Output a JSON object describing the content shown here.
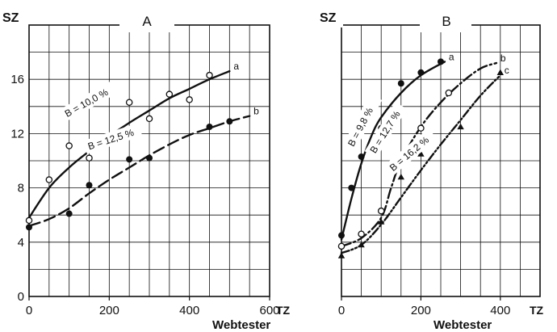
{
  "chart_data": [
    {
      "type": "scatter",
      "panel_label": "A",
      "ylabel": "SZ",
      "xlabel": "Webtester",
      "x_unit": "TZ",
      "xlim": [
        0,
        600
      ],
      "ylim": [
        0,
        20
      ],
      "x_ticks": [
        "0",
        "200",
        "400",
        "600"
      ],
      "y_ticks": [
        "0",
        "4",
        "8",
        "12",
        "16"
      ],
      "grid": true,
      "series": [
        {
          "name": "a",
          "annotation": "B = 10,0 %",
          "marker": "open-circle",
          "line": "solid",
          "points": [
            [
              0,
              5.6
            ],
            [
              50,
              8.6
            ],
            [
              100,
              11.1
            ],
            [
              150,
              10.2
            ],
            [
              250,
              14.3
            ],
            [
              300,
              13.1
            ],
            [
              350,
              14.9
            ],
            [
              400,
              14.5
            ],
            [
              450,
              16.3
            ]
          ],
          "curve": [
            [
              0,
              5.8
            ],
            [
              50,
              8.0
            ],
            [
              100,
              9.5
            ],
            [
              150,
              10.7
            ],
            [
              200,
              11.8
            ],
            [
              250,
              12.8
            ],
            [
              300,
              13.7
            ],
            [
              350,
              14.6
            ],
            [
              400,
              15.3
            ],
            [
              450,
              16.0
            ],
            [
              500,
              16.6
            ]
          ]
        },
        {
          "name": "b",
          "annotation": "B = 12,5 %",
          "marker": "filled-circle",
          "line": "dashed",
          "points": [
            [
              0,
              5.1
            ],
            [
              100,
              6.1
            ],
            [
              150,
              8.2
            ],
            [
              250,
              10.1
            ],
            [
              300,
              10.2
            ],
            [
              450,
              12.5
            ],
            [
              500,
              12.9
            ]
          ],
          "curve": [
            [
              0,
              5.2
            ],
            [
              50,
              5.7
            ],
            [
              100,
              6.5
            ],
            [
              150,
              7.6
            ],
            [
              200,
              8.6
            ],
            [
              250,
              9.5
            ],
            [
              300,
              10.4
            ],
            [
              350,
              11.2
            ],
            [
              400,
              11.9
            ],
            [
              450,
              12.4
            ],
            [
              500,
              12.9
            ],
            [
              550,
              13.3
            ]
          ]
        }
      ]
    },
    {
      "type": "scatter",
      "panel_label": "B",
      "ylabel": "SZ",
      "xlabel": "Webtester",
      "x_unit": "TZ",
      "xlim": [
        0,
        500
      ],
      "ylim": [
        0,
        20
      ],
      "x_ticks": [
        "0",
        "200",
        "400"
      ],
      "y_ticks": [],
      "grid": true,
      "series": [
        {
          "name": "a",
          "annotation": "B = 9,8 %",
          "marker": "filled-circle",
          "line": "solid",
          "points": [
            [
              0,
              4.5
            ],
            [
              25,
              8.0
            ],
            [
              50,
              10.3
            ],
            [
              100,
              12.4
            ],
            [
              150,
              15.7
            ],
            [
              200,
              16.5
            ],
            [
              250,
              17.3
            ]
          ],
          "curve": [
            [
              0,
              4.2
            ],
            [
              25,
              7.2
            ],
            [
              50,
              9.8
            ],
            [
              75,
              11.8
            ],
            [
              100,
              13.2
            ],
            [
              150,
              15.0
            ],
            [
              200,
              16.3
            ],
            [
              260,
              17.3
            ]
          ]
        },
        {
          "name": "b",
          "annotation": "B = 12,7 %",
          "marker": "open-circle",
          "line": "dash-dot",
          "points": [
            [
              0,
              3.7
            ],
            [
              50,
              4.6
            ],
            [
              100,
              6.3
            ],
            [
              150,
              10.3
            ],
            [
              200,
              12.4
            ],
            [
              270,
              15.0
            ]
          ],
          "curve": [
            [
              0,
              3.7
            ],
            [
              50,
              4.3
            ],
            [
              100,
              5.8
            ],
            [
              125,
              8.0
            ],
            [
              150,
              10.0
            ],
            [
              200,
              12.5
            ],
            [
              250,
              14.3
            ],
            [
              300,
              15.7
            ],
            [
              350,
              16.8
            ],
            [
              390,
              17.2
            ]
          ]
        },
        {
          "name": "c",
          "annotation": "B = 16,2 %",
          "marker": "filled-triangle",
          "line": "dash-dot-dot",
          "points": [
            [
              0,
              3.0
            ],
            [
              50,
              3.8
            ],
            [
              100,
              5.5
            ],
            [
              150,
              8.8
            ],
            [
              200,
              10.5
            ],
            [
              300,
              12.5
            ],
            [
              400,
              16.5
            ]
          ],
          "curve": [
            [
              0,
              3.2
            ],
            [
              50,
              3.8
            ],
            [
              100,
              5.3
            ],
            [
              150,
              7.3
            ],
            [
              200,
              9.3
            ],
            [
              250,
              11.2
            ],
            [
              300,
              13.0
            ],
            [
              350,
              14.8
            ],
            [
              400,
              16.3
            ]
          ]
        }
      ]
    }
  ],
  "colors": {
    "ink": "#111111",
    "background": "#ffffff"
  }
}
